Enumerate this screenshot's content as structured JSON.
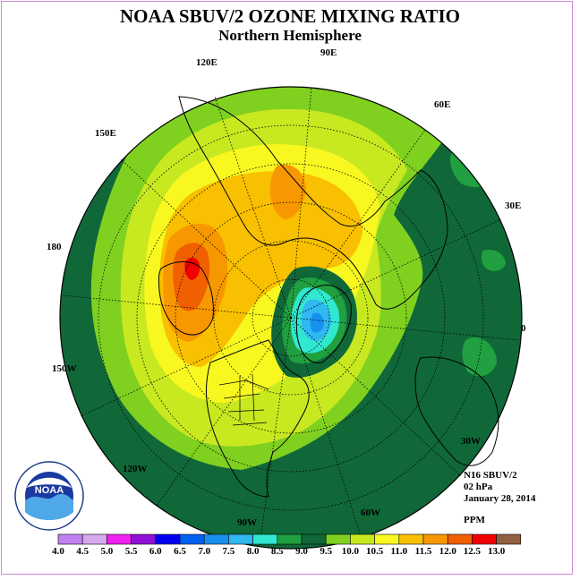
{
  "title": "NOAA SBUV/2 OZONE MIXING RATIO",
  "subtitle": "Northern Hemisphere",
  "longitude_labels": [
    "90E",
    "60E",
    "30E",
    "0",
    "30W",
    "60W",
    "90W",
    "120W",
    "150W",
    "180",
    "150E",
    "120E"
  ],
  "info": {
    "instrument": "N16 SBUV/2",
    "level": "02 hPa",
    "date": "January 28, 2014",
    "unit": "PPM"
  },
  "logo": {
    "text": "NOAA"
  },
  "colorbar": {
    "ticks": [
      "4.0",
      "4.5",
      "5.0",
      "5.5",
      "6.0",
      "6.5",
      "7.0",
      "7.5",
      "8.0",
      "8.5",
      "9.0",
      "9.5",
      "10.0",
      "10.5",
      "11.0",
      "11.5",
      "12.0",
      "12.5",
      "13.0"
    ],
    "colors": [
      "#c080f0",
      "#d8a8f0",
      "#f020f0",
      "#9010d8",
      "#0000f0",
      "#0060f0",
      "#1890f0",
      "#30b8f0",
      "#30e8d0",
      "#20a040",
      "#106838",
      "#80d020",
      "#c8e820",
      "#f8f820",
      "#f8c000",
      "#f89800",
      "#f06000",
      "#f00000",
      "#906040"
    ]
  },
  "colors": {
    "ocean_ring": "#106838",
    "border": "#d08ad8"
  }
}
